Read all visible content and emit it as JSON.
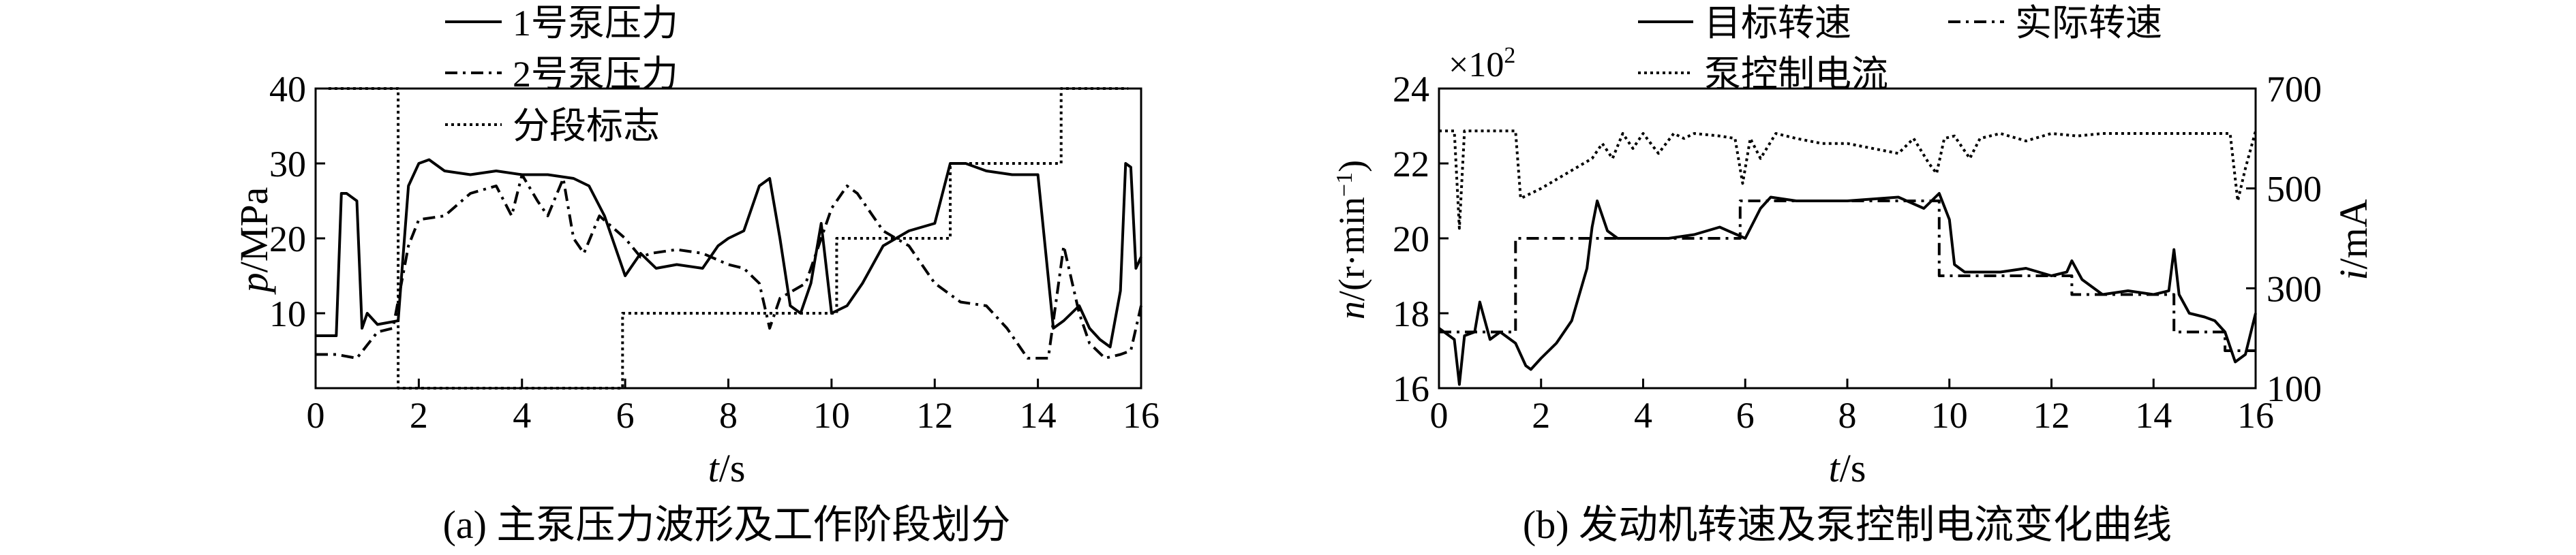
{
  "chart_data": [
    {
      "id": "a",
      "type": "line",
      "caption": "(a) 主泵压力波形及工作阶段划分",
      "xlabel_var": "t",
      "xlabel_unit": "/s",
      "ylabel_var": "p",
      "ylabel_unit": "/MPa",
      "xlim": [
        0,
        16
      ],
      "ylim": [
        0,
        40
      ],
      "xticks": [
        "0",
        "2",
        "4",
        "6",
        "8",
        "10",
        "12",
        "14",
        "16"
      ],
      "yticks": [
        "10",
        "20",
        "30",
        "40"
      ],
      "legend_placement": "top-center",
      "series": [
        {
          "name": "1号泵压力",
          "style": "solid",
          "x": [
            0,
            0.4,
            0.5,
            0.6,
            0.8,
            0.9,
            1.0,
            1.2,
            1.6,
            1.8,
            2.0,
            2.2,
            2.5,
            3.0,
            3.5,
            4.0,
            4.5,
            5.0,
            5.3,
            5.6,
            6.0,
            6.3,
            6.6,
            7.0,
            7.5,
            7.8,
            8.0,
            8.3,
            8.6,
            8.8,
            9.0,
            9.2,
            9.4,
            9.6,
            9.8,
            10.0,
            10.3,
            10.6,
            11.0,
            11.5,
            12.0,
            12.3,
            12.6,
            13.0,
            13.5,
            14.0,
            14.3,
            14.5,
            14.8,
            15.0,
            15.2,
            15.4,
            15.6,
            15.7,
            15.8,
            15.9,
            16.0
          ],
          "y": [
            7,
            7,
            26,
            26,
            25,
            8,
            10,
            8.5,
            9,
            27,
            30,
            30.5,
            29,
            28.5,
            29,
            28.5,
            28.5,
            28,
            27,
            23,
            15,
            18,
            16,
            16.5,
            16,
            19,
            20,
            21,
            27,
            28,
            20,
            11,
            10,
            14,
            22,
            10,
            11,
            14,
            19,
            21,
            22,
            30,
            30,
            29,
            28.5,
            28.5,
            8,
            9,
            11,
            8,
            6.5,
            5.5,
            13,
            30,
            29.5,
            16,
            17.5
          ]
        },
        {
          "name": "2号泵压力",
          "style": "dashdot",
          "x": [
            0,
            0.4,
            0.8,
            1.2,
            1.5,
            1.8,
            2.0,
            2.5,
            3.0,
            3.5,
            3.8,
            4.0,
            4.3,
            4.5,
            4.8,
            5.0,
            5.2,
            5.5,
            6.0,
            6.3,
            6.5,
            7.0,
            7.5,
            8.0,
            8.3,
            8.6,
            8.8,
            9.0,
            9.5,
            10.0,
            10.3,
            10.5,
            10.8,
            11.0,
            11.5,
            12.0,
            12.5,
            13.0,
            13.4,
            13.8,
            14.2,
            14.5,
            14.8,
            15.0,
            15.3,
            15.6,
            15.8,
            16.0
          ],
          "y": [
            4.5,
            4.5,
            4,
            7.5,
            8,
            19,
            22.5,
            23,
            26,
            27,
            23,
            28.5,
            25,
            23,
            28,
            20,
            18,
            23,
            20,
            17.5,
            18,
            18.5,
            18,
            16.5,
            16,
            14,
            8,
            12,
            14,
            24,
            27,
            26,
            23,
            21,
            19,
            14,
            11.5,
            11,
            8,
            4,
            4,
            19,
            10,
            6,
            4,
            4.5,
            5,
            11
          ]
        },
        {
          "name": "分段标志",
          "style": "dotted",
          "x": [
            0.25,
            1.6,
            1.6,
            5.75,
            5.75,
            5.95,
            5.95,
            10.1,
            10.1,
            12.3,
            12.3,
            14.45,
            14.45,
            15.75
          ],
          "y": [
            40,
            40,
            0,
            0,
            0,
            0,
            10,
            10,
            20,
            20,
            30,
            30,
            40,
            40
          ]
        }
      ]
    },
    {
      "id": "b",
      "type": "line",
      "caption": "(b) 发动机转速及泵控制电流变化曲线",
      "xlabel_var": "t",
      "xlabel_unit": "/s",
      "ylabel_var": "n",
      "ylabel_unit": "/(r·min",
      "ylabel_unit_sup": "−1",
      "ylabel_unit_end": ")",
      "y2label_var": "i",
      "y2label_unit": "/mA",
      "multiplier_base": "×10",
      "multiplier_exp": "2",
      "xlim": [
        0,
        16
      ],
      "ylim": [
        16,
        24
      ],
      "y2lim": [
        100,
        700
      ],
      "xticks": [
        "0",
        "2",
        "4",
        "6",
        "8",
        "10",
        "12",
        "14",
        "16"
      ],
      "yticks": [
        "16",
        "18",
        "20",
        "22",
        "24"
      ],
      "y2ticks": [
        "100",
        "300",
        "500",
        "700"
      ],
      "legend_placement": "top",
      "series": [
        {
          "name": "目标转速",
          "style": "solid",
          "axis": "left",
          "x": [
            0,
            0.3,
            0.4,
            0.5,
            0.7,
            0.8,
            1.0,
            1.2,
            1.5,
            1.7,
            1.8,
            2.0,
            2.3,
            2.6,
            2.9,
            3.0,
            3.1,
            3.3,
            3.5,
            4.0,
            4.5,
            5.0,
            5.5,
            6.0,
            6.3,
            6.5,
            7.0,
            8.0,
            9.0,
            9.5,
            9.8,
            10.0,
            10.1,
            10.3,
            10.5,
            11.0,
            11.5,
            12.0,
            12.3,
            12.4,
            12.6,
            13.0,
            13.5,
            14.0,
            14.3,
            14.4,
            14.5,
            14.7,
            15.0,
            15.2,
            15.4,
            15.6,
            15.8,
            16.0
          ],
          "y": [
            17.6,
            17.3,
            16.1,
            17.4,
            17.5,
            18.3,
            17.3,
            17.5,
            17.2,
            16.6,
            16.5,
            16.8,
            17.2,
            17.8,
            19.2,
            20.3,
            21.0,
            20.2,
            20.0,
            20.0,
            20.0,
            20.1,
            20.3,
            20.0,
            20.8,
            21.1,
            21.0,
            21.0,
            21.1,
            20.8,
            21.2,
            20.5,
            19.3,
            19.1,
            19.1,
            19.1,
            19.2,
            19.0,
            19.1,
            19.4,
            18.9,
            18.5,
            18.6,
            18.5,
            18.6,
            19.7,
            18.5,
            18.0,
            17.9,
            17.8,
            17.5,
            16.7,
            16.9,
            18.0
          ]
        },
        {
          "name": "实际转速",
          "style": "dashdot",
          "axis": "left",
          "x": [
            0,
            1.5,
            1.5,
            5.9,
            5.9,
            9.8,
            9.8,
            12.4,
            12.4,
            14.4,
            14.4,
            15.4,
            15.4,
            16.0
          ],
          "y": [
            17.5,
            17.5,
            20.0,
            20.0,
            21.0,
            21.0,
            19.0,
            19.0,
            18.5,
            18.5,
            17.5,
            17.5,
            17.0,
            17.0
          ]
        },
        {
          "name": "泵控制电流",
          "style": "dotted",
          "axis": "right",
          "x": [
            0,
            0.3,
            0.4,
            0.5,
            0.6,
            1.5,
            1.6,
            2.0,
            2.5,
            3.0,
            3.2,
            3.4,
            3.6,
            3.8,
            4.0,
            4.3,
            4.6,
            4.8,
            5.0,
            5.5,
            5.8,
            5.95,
            6.1,
            6.3,
            6.6,
            7.0,
            7.5,
            8.0,
            8.5,
            9.0,
            9.3,
            9.6,
            9.75,
            9.9,
            10.1,
            10.4,
            10.6,
            11.0,
            11.5,
            12.0,
            12.5,
            13.0,
            13.5,
            14.0,
            14.5,
            15.0,
            15.5,
            15.65,
            15.8,
            16.0
          ],
          "y": [
            615,
            615,
            420,
            615,
            615,
            615,
            480,
            500,
            530,
            560,
            590,
            560,
            610,
            580,
            610,
            570,
            610,
            600,
            610,
            605,
            600,
            510,
            600,
            560,
            610,
            600,
            590,
            590,
            580,
            570,
            600,
            550,
            530,
            600,
            605,
            560,
            600,
            610,
            595,
            610,
            605,
            610,
            610,
            610,
            610,
            610,
            610,
            475,
            540,
            615
          ]
        }
      ]
    }
  ]
}
